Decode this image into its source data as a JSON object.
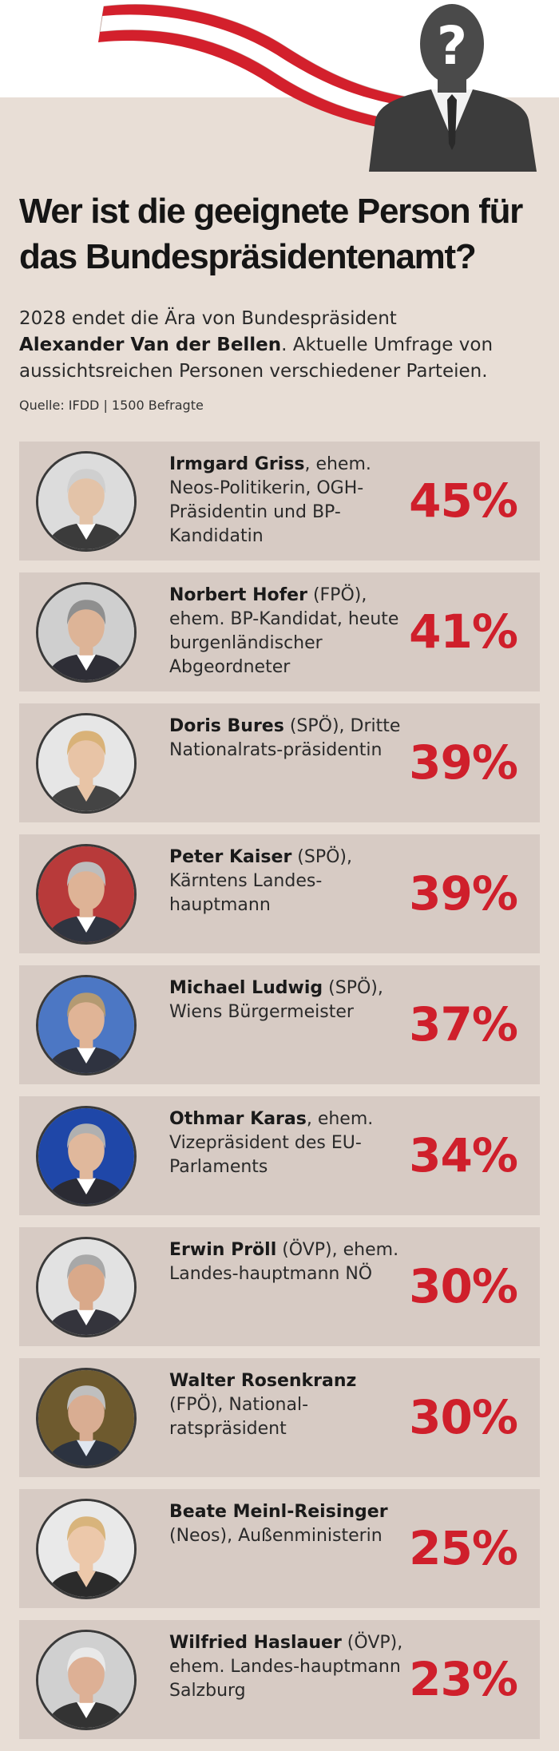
{
  "header": {
    "title_line1": "Wer ist die geeignete Person für",
    "title_line2": "das Bundespräsidentenamt?",
    "subtitle_pre": "2028 endet die Ära von Bundespräsident",
    "subtitle_bold": "Alexander Van der Bellen",
    "subtitle_post": ". Aktuelle Umfrage von aussichtsreichen Personen verschiedener Parteien.",
    "source": "Quelle: IFDD | 1500 Befragte",
    "icons": [
      "austrian-flag-ribbon",
      "question-mark-silhouette"
    ],
    "colors": {
      "flag_red": "#d3202c",
      "accent_red": "#cf1f2b",
      "background": "#e8ded6",
      "row_background": "#d7cbc4"
    }
  },
  "chart_data": {
    "type": "bar",
    "unit": "%",
    "categories": [
      "Irmgard Griss",
      "Norbert Hofer",
      "Doris Bures",
      "Peter Kaiser",
      "Michael Ludwig",
      "Othmar Karas",
      "Erwin Pröll",
      "Walter Rosenkranz",
      "Beate Meinl-Reisinger",
      "Wilfried Haslauer"
    ],
    "values": [
      45,
      41,
      39,
      39,
      37,
      34,
      30,
      30,
      25,
      23
    ],
    "entries": [
      {
        "name": "Irmgard Griss",
        "detail": ", ehem. Neos-Politikerin, OGH-Präsidentin und BP-Kandidatin",
        "label": "45%",
        "value": 45
      },
      {
        "name": "Norbert Hofer",
        "detail": " (FPÖ), ehem. BP-Kandidat, heute burgenländischer Abgeordneter",
        "label": "41%",
        "value": 41
      },
      {
        "name": "Doris Bures",
        "detail": " (SPÖ), Dritte Nationalrats-präsidentin",
        "label": "39%",
        "value": 39
      },
      {
        "name": "Peter Kaiser",
        "detail": " (SPÖ), Kärntens Landes-hauptmann",
        "label": "39%",
        "value": 39
      },
      {
        "name": "Michael Ludwig",
        "detail": " (SPÖ), Wiens Bürgermeister",
        "label": "37%",
        "value": 37
      },
      {
        "name": "Othmar Karas",
        "detail": ", ehem. Vizepräsident des EU-Parlaments",
        "label": "34%",
        "value": 34
      },
      {
        "name": "Erwin Pröll",
        "detail": " (ÖVP), ehem. Landes-hauptmann NÖ",
        "label": "30%",
        "value": 30
      },
      {
        "name": "Walter Rosenkranz",
        "detail": " (FPÖ), National-ratspräsident",
        "label": "30%",
        "value": 30
      },
      {
        "name": "Beate Meinl-Reisinger",
        "detail": " (Neos), Außenministerin",
        "label": "25%",
        "value": 25
      },
      {
        "name": "Wilfried Haslauer",
        "detail": " (ÖVP), ehem. Landes-hauptmann Salzburg",
        "label": "23%",
        "value": 23
      }
    ]
  }
}
